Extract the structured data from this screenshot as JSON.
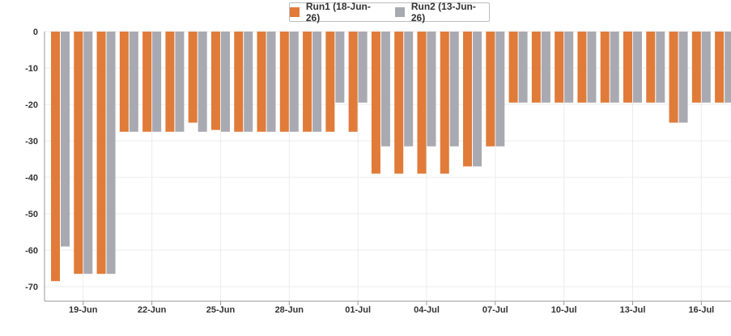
{
  "chart_data": {
    "type": "bar",
    "title": "",
    "xlabel": "",
    "ylabel": "",
    "ylim": [
      -72,
      0
    ],
    "yticks": [
      0,
      -10,
      -20,
      -30,
      -40,
      -50,
      -60,
      -70
    ],
    "ytick_labels": [
      "0",
      "-10",
      "-20",
      "-30",
      "-40",
      "-50",
      "-60",
      "-70"
    ],
    "grid": true,
    "legend_position": "top-center",
    "categories": [
      "18-Jun",
      "19-Jun",
      "20-Jun",
      "21-Jun",
      "22-Jun",
      "23-Jun",
      "24-Jun",
      "25-Jun",
      "26-Jun",
      "27-Jun",
      "28-Jun",
      "29-Jun",
      "30-Jun",
      "01-Jul",
      "02-Jul",
      "03-Jul",
      "04-Jul",
      "05-Jul",
      "06-Jul",
      "07-Jul",
      "08-Jul",
      "09-Jul",
      "10-Jul",
      "11-Jul",
      "12-Jul",
      "13-Jul",
      "14-Jul",
      "15-Jul",
      "16-Jul",
      "17-Jul"
    ],
    "tick_labels": [
      "19-Jun",
      "22-Jun",
      "25-Jun",
      "28-Jun",
      "01-Jul",
      "04-Jul",
      "07-Jul",
      "10-Jul",
      "13-Jul",
      "16-Jul"
    ],
    "series": [
      {
        "name": "Run1 (18-Jun-26)",
        "color": "#e07b39",
        "values": [
          -68.5,
          -66.5,
          -66.5,
          -27.5,
          -27.5,
          -27.5,
          -25,
          -27,
          -27.5,
          -27.5,
          -27.5,
          -27.5,
          -27.5,
          -27.5,
          -39,
          -39,
          -39,
          -39,
          -37,
          -31.5,
          -19.5,
          -19.5,
          -19.5,
          -19.5,
          -19.5,
          -19.5,
          -19.5,
          -25,
          -19.5,
          -19.5
        ]
      },
      {
        "name": "Run2 (13-Jun-26)",
        "color": "#a9a9b1",
        "values": [
          -59,
          -66.5,
          -66.5,
          -27.5,
          -27.5,
          -27.5,
          -27.5,
          -27.5,
          -27.5,
          -27.5,
          -27.5,
          -27.5,
          -19.5,
          -19.5,
          -31.5,
          -31.5,
          -31.5,
          -31.5,
          -37,
          -31.5,
          -19.5,
          -19.5,
          -19.5,
          -19.5,
          -19.5,
          -19.5,
          -19.5,
          -25,
          -19.5,
          -19.5
        ]
      }
    ]
  }
}
